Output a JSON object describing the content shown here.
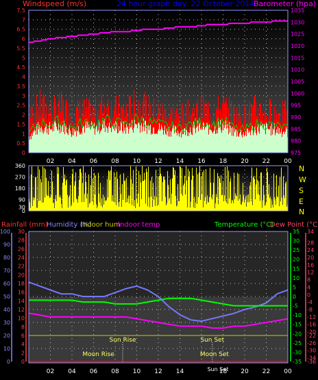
{
  "header": {
    "windspeed_label": "Windspeed (m/s)",
    "title": "24 hour graph day: 22 October 2014",
    "barometer_label": "Barometer (hpa)"
  },
  "legend_bottom": {
    "rainfall": "Rainfall (mm)",
    "humidity": "Humidity (%)",
    "indoor_hum": "Indoor hum",
    "indoor_temp": "Indoor temp",
    "temperature": "Temperature (°C)",
    "dew_point": "Dew Point (°C)"
  },
  "compass": [
    "N",
    "W",
    "S",
    "E",
    "N"
  ],
  "events": {
    "sun_rise": "Sun Rise",
    "moon_rise": "Moon Rise",
    "sun_set": "Sun Set",
    "moon_set": "Moon Set",
    "sun_set_overlap": "Sun Set"
  },
  "colors": {
    "wind": "#ff0000",
    "gust": "#00cc00",
    "barometer": "#ff00ff",
    "wind_fill": "#ccffcc",
    "direction": "#ffff00",
    "humidity": "#7777ff",
    "temperature": "#00ff00",
    "dew_point": "#ff00ff",
    "rain": "#ff0000",
    "grid": "#c0c0c0",
    "title": "#0000ff",
    "left_axis": "#ff3333",
    "rain_axis": "#ff4444",
    "humidity_axis": "#8888ff",
    "temp_axis": "#00ff00",
    "dew_axis": "#ff4466",
    "sun_line": "#cccc00"
  },
  "chart_data": [
    {
      "type": "line",
      "panel": "wind",
      "x_ticks": [
        "02",
        "04",
        "06",
        "08",
        "10",
        "12",
        "14",
        "16",
        "18",
        "20",
        "22",
        "00"
      ],
      "y_left": {
        "label": "Windspeed (m/s)",
        "ticks": [
          0,
          0.5,
          1,
          1.5,
          2,
          2.5,
          3,
          3.5,
          4,
          4.5,
          5,
          5.5,
          6,
          6.5,
          7,
          7.5
        ],
        "ylim": [
          0,
          7.5
        ]
      },
      "y_right": {
        "label": "Barometer (hpa)",
        "ticks": [
          975,
          980,
          985,
          990,
          995,
          1000,
          1005,
          1010,
          1015,
          1020,
          1025,
          1030,
          1035
        ],
        "ylim": [
          975,
          1035
        ]
      },
      "series": [
        {
          "kind": "wind-speed-bars",
          "hours": [
            0,
            1,
            2,
            3,
            4,
            5,
            6,
            7,
            8,
            9,
            10,
            11,
            12,
            13,
            14,
            15,
            16,
            17,
            18,
            19,
            20,
            21,
            22,
            23,
            24
          ],
          "values": [
            1.9,
            2.6,
            2.3,
            2.5,
            2.1,
            2.3,
            2.2,
            2.6,
            2.4,
            2.3,
            2.7,
            2.4,
            2.2,
            2.1,
            2.0,
            2.2,
            2.4,
            2.3,
            2.5,
            2.1,
            2.0,
            2.4,
            2.3,
            2.2,
            2.1
          ]
        },
        {
          "kind": "gust",
          "hours": [
            0,
            1,
            2,
            3,
            4,
            5,
            6,
            7,
            8,
            9,
            10,
            11,
            12,
            13,
            14,
            15,
            16,
            17,
            18,
            19,
            20,
            21,
            22,
            23,
            24
          ],
          "values": [
            1.0,
            1.6,
            1.5,
            1.7,
            1.3,
            1.6,
            1.5,
            1.7,
            1.6,
            1.5,
            1.8,
            1.6,
            1.5,
            1.4,
            1.3,
            1.5,
            1.6,
            1.5,
            1.7,
            1.3,
            1.2,
            1.5,
            1.5,
            1.4,
            1.3
          ]
        },
        {
          "kind": "barometer",
          "hours": [
            0,
            1,
            2,
            3,
            4,
            5,
            6,
            7,
            8,
            9,
            10,
            11,
            12,
            13,
            14,
            15,
            16,
            17,
            18,
            19,
            20,
            21,
            22,
            23,
            24
          ],
          "values": [
            1021.5,
            1022,
            1023,
            1023.5,
            1024,
            1024.5,
            1025,
            1025.5,
            1026,
            1026,
            1026.5,
            1027,
            1027,
            1027.5,
            1028,
            1028,
            1028.5,
            1029,
            1029,
            1029.5,
            1029.5,
            1030,
            1030,
            1030.5,
            1030.5
          ]
        }
      ]
    },
    {
      "type": "bar",
      "panel": "wind-direction",
      "y_ticks": [
        0,
        30,
        90,
        180,
        270,
        360
      ],
      "ylim": [
        0,
        360
      ],
      "series": [
        {
          "name": "direction",
          "hours": [
            0,
            1,
            2,
            3,
            4,
            5,
            6,
            7,
            8,
            9,
            10,
            11,
            12,
            13,
            14,
            15,
            16,
            17,
            18,
            19,
            20,
            21,
            22,
            23,
            24
          ],
          "values": [
            350,
            340,
            350,
            330,
            345,
            350,
            340,
            355,
            345,
            350,
            340,
            350,
            345,
            335,
            350,
            345,
            340,
            350,
            355,
            345,
            350,
            340,
            345,
            350,
            345
          ]
        }
      ]
    },
    {
      "type": "line",
      "panel": "temperature-humidity",
      "x_ticks": [
        "02",
        "04",
        "06",
        "08",
        "10",
        "12",
        "14",
        "16",
        "18",
        "20",
        "22",
        "00"
      ],
      "y_humidity": {
        "ticks": [
          0,
          10,
          20,
          30,
          40,
          50,
          60,
          70,
          80,
          90,
          100
        ],
        "ylim": [
          0,
          100
        ]
      },
      "y_rain": {
        "ticks": [
          0,
          2,
          4,
          6,
          8,
          10,
          12,
          14,
          16,
          18,
          20,
          22,
          24,
          26,
          28,
          30
        ],
        "ylim": [
          0,
          30
        ]
      },
      "y_temp": {
        "ticks": [
          -35,
          -30,
          -25,
          -20,
          -15,
          -10,
          -5,
          0,
          5,
          10,
          15,
          20,
          25,
          30,
          35
        ],
        "ylim": [
          -35,
          35
        ]
      },
      "y_dew": {
        "ticks": [
          -36,
          -34,
          -30,
          -26,
          -22,
          -20,
          -16,
          -12,
          -8,
          -4,
          0,
          4,
          8,
          12,
          16,
          20,
          24,
          28,
          34
        ],
        "ylim": [
          -36,
          34
        ]
      },
      "series": [
        {
          "kind": "humidity",
          "hours": [
            0,
            1,
            2,
            3,
            4,
            5,
            6,
            7,
            8,
            9,
            10,
            11,
            12,
            13,
            14,
            15,
            16,
            17,
            18,
            19,
            20,
            21,
            22,
            23,
            24
          ],
          "values": [
            61,
            58,
            55,
            52,
            52,
            50,
            50,
            50,
            53,
            56,
            58,
            55,
            50,
            42,
            36,
            32,
            31,
            33,
            35,
            37,
            40,
            42,
            45,
            52,
            55
          ]
        },
        {
          "kind": "temperature",
          "hours": [
            0,
            1,
            2,
            3,
            4,
            5,
            6,
            7,
            8,
            9,
            10,
            11,
            12,
            13,
            14,
            15,
            16,
            17,
            18,
            19,
            20,
            21,
            22,
            23,
            24
          ],
          "values": [
            -2,
            -2,
            -2,
            -2,
            -2,
            -3,
            -3,
            -3,
            -4,
            -4,
            -4,
            -3,
            -2,
            -1,
            -1,
            -1,
            -2,
            -3,
            -4,
            -5,
            -5,
            -5,
            -5,
            -5,
            -5
          ]
        },
        {
          "kind": "dew-point",
          "hours": [
            0,
            1,
            2,
            3,
            4,
            5,
            6,
            7,
            8,
            9,
            10,
            11,
            12,
            13,
            14,
            15,
            16,
            17,
            18,
            19,
            20,
            21,
            22,
            23,
            24
          ],
          "values": [
            -10,
            -11,
            -12,
            -12,
            -12,
            -12,
            -12,
            -12,
            -12,
            -12,
            -13,
            -14,
            -15,
            -16,
            -17,
            -17,
            -17,
            -18,
            -18,
            -17,
            -17,
            -16,
            -15,
            -14,
            -13
          ]
        },
        {
          "kind": "rainfall",
          "hours": [
            0,
            24
          ],
          "values": [
            0,
            0
          ]
        }
      ],
      "events_hours": {
        "sun_rise": 8.7,
        "moon_rise": 8.1,
        "sun_set": 17.0,
        "moon_set": 17.2
      }
    }
  ]
}
